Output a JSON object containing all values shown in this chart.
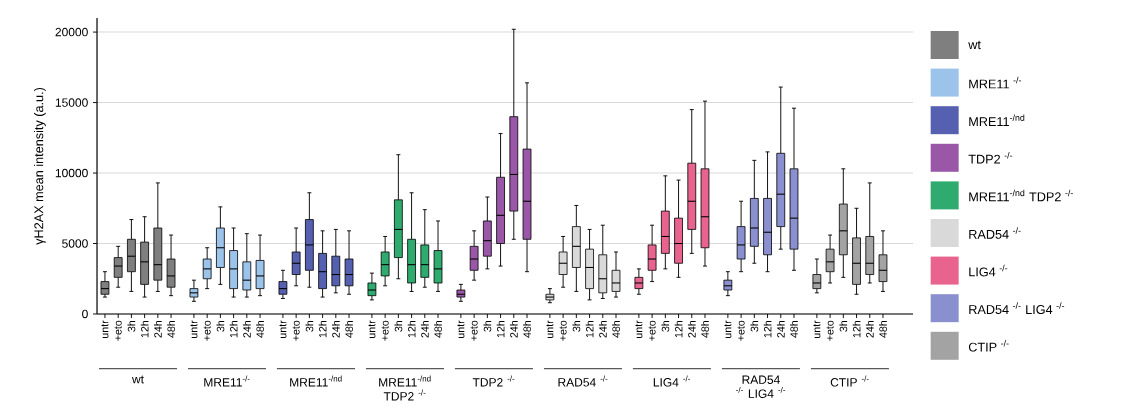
{
  "chart_data": {
    "type": "box",
    "ylabel": "γH2AX mean intensity (a.u.)",
    "ylim": [
      0,
      21000
    ],
    "yticks": [
      0,
      5000,
      10000,
      15000,
      20000
    ],
    "grid": "y",
    "legend": "right",
    "categories": [
      "untr",
      "+eto",
      "3h",
      "12h",
      "24h",
      "48h",
      "untr",
      "+eto",
      "3h",
      "12h",
      "24h",
      "48h",
      "untr",
      "+eto",
      "3h",
      "12h",
      "24h",
      "48h",
      "untr",
      "+eto",
      "3h",
      "12h",
      "24h",
      "48h",
      "untr",
      "+eto",
      "3h",
      "12h",
      "24h",
      "48h",
      "untr",
      "+eto",
      "3h",
      "12h",
      "24h",
      "48h",
      "untr",
      "+eto",
      "3h",
      "12h",
      "24h",
      "48h",
      "untr",
      "+eto",
      "3h",
      "12h",
      "24h",
      "48h",
      "untr",
      "+eto",
      "3h",
      "12h",
      "24h",
      "48h"
    ],
    "annotations": [
      "wt",
      "MRE11$^{-/-}$",
      "MRE11$^{-/nd}$",
      "MRE11$^{-/nd}$ TDP2 $^{-/-}$",
      "TDP2 $^{-/-}$",
      "RAD54 $^{-/-}$",
      "LIG4 $^{-/-}$",
      "RAD54 $^{-/-}$ LIG4 $^{-/-}$",
      "CTIP $^{-/-}$"
    ],
    "series": [
      {
        "name": "wt",
        "color": "#7f7f7f",
        "boxes": [
          {
            "low": 1200,
            "q1": 1400,
            "median": 1800,
            "q3": 2300,
            "high": 3000
          },
          {
            "low": 1900,
            "q1": 2600,
            "median": 3400,
            "q3": 4000,
            "high": 4800
          },
          {
            "low": 1600,
            "q1": 3000,
            "median": 4100,
            "q3": 5300,
            "high": 6700
          },
          {
            "low": 1200,
            "q1": 2100,
            "median": 3700,
            "q3": 5100,
            "high": 6900
          },
          {
            "low": 1600,
            "q1": 2400,
            "median": 3500,
            "q3": 6100,
            "high": 9300
          },
          {
            "low": 1300,
            "q1": 1900,
            "median": 2700,
            "q3": 3900,
            "high": 5600
          },
          null,
          null,
          null,
          null,
          null,
          null,
          null,
          null,
          null,
          null,
          null,
          null,
          null,
          null,
          null,
          null,
          null,
          null,
          null,
          null,
          null,
          null,
          null,
          null,
          null,
          null,
          null,
          null,
          null,
          null,
          null,
          null,
          null,
          null,
          null,
          null,
          null,
          null,
          null,
          null,
          null,
          null,
          null,
          null,
          null,
          null,
          null,
          null
        ]
      },
      {
        "name": "MRE11 $^{-/-}$",
        "color": "#9cc3ea",
        "boxes": [
          null,
          null,
          null,
          null,
          null,
          null,
          {
            "low": 900,
            "q1": 1200,
            "median": 1500,
            "q3": 1800,
            "high": 2400
          },
          {
            "low": 1800,
            "q1": 2500,
            "median": 3200,
            "q3": 3900,
            "high": 4700
          },
          {
            "low": 2100,
            "q1": 3300,
            "median": 4700,
            "q3": 6100,
            "high": 7600
          },
          {
            "low": 1200,
            "q1": 1800,
            "median": 3200,
            "q3": 4500,
            "high": 6100
          },
          {
            "low": 1200,
            "q1": 1700,
            "median": 2400,
            "q3": 3700,
            "high": 5700
          },
          {
            "low": 1300,
            "q1": 1800,
            "median": 2700,
            "q3": 3800,
            "high": 5600
          },
          null,
          null,
          null,
          null,
          null,
          null,
          null,
          null,
          null,
          null,
          null,
          null,
          null,
          null,
          null,
          null,
          null,
          null,
          null,
          null,
          null,
          null,
          null,
          null,
          null,
          null,
          null,
          null,
          null,
          null,
          null,
          null,
          null,
          null,
          null,
          null,
          null,
          null,
          null,
          null,
          null,
          null
        ]
      },
      {
        "name": "MRE11$^{-/nd}$",
        "color": "#5660b0",
        "boxes": [
          null,
          null,
          null,
          null,
          null,
          null,
          null,
          null,
          null,
          null,
          null,
          null,
          {
            "low": 1100,
            "q1": 1400,
            "median": 1800,
            "q3": 2300,
            "high": 3100
          },
          {
            "low": 2000,
            "q1": 2800,
            "median": 3600,
            "q3": 4400,
            "high": 6100
          },
          {
            "low": 1900,
            "q1": 3100,
            "median": 4900,
            "q3": 6700,
            "high": 8600
          },
          {
            "low": 1200,
            "q1": 1800,
            "median": 3000,
            "q3": 4300,
            "high": 5900
          },
          {
            "low": 1500,
            "q1": 2000,
            "median": 2800,
            "q3": 4100,
            "high": 6000
          },
          {
            "low": 1400,
            "q1": 2000,
            "median": 2800,
            "q3": 3900,
            "high": 5900
          },
          null,
          null,
          null,
          null,
          null,
          null,
          null,
          null,
          null,
          null,
          null,
          null,
          null,
          null,
          null,
          null,
          null,
          null,
          null,
          null,
          null,
          null,
          null,
          null,
          null,
          null,
          null,
          null,
          null,
          null,
          null,
          null,
          null,
          null,
          null,
          null
        ]
      },
      {
        "name": "TDP2 $^{-/-}$",
        "color": "#9a57a8",
        "boxes": [
          null,
          null,
          null,
          null,
          null,
          null,
          null,
          null,
          null,
          null,
          null,
          null,
          null,
          null,
          null,
          null,
          null,
          null,
          null,
          null,
          null,
          null,
          null,
          null,
          {
            "low": 900,
            "q1": 1200,
            "median": 1400,
            "q3": 1700,
            "high": 2100
          },
          {
            "low": 2400,
            "q1": 3100,
            "median": 3900,
            "q3": 4800,
            "high": 5900
          },
          {
            "low": 3200,
            "q1": 4100,
            "median": 5200,
            "q3": 6600,
            "high": 8300
          },
          {
            "low": 3400,
            "q1": 5000,
            "median": 7000,
            "q3": 9700,
            "high": 12800
          },
          {
            "low": 5300,
            "q1": 7300,
            "median": 9900,
            "q3": 14000,
            "high": 20200
          },
          {
            "low": 3000,
            "q1": 5300,
            "median": 8000,
            "q3": 11700,
            "high": 16400
          },
          null,
          null,
          null,
          null,
          null,
          null,
          null,
          null,
          null,
          null,
          null,
          null,
          null,
          null,
          null,
          null,
          null,
          null,
          null,
          null,
          null,
          null,
          null,
          null
        ]
      },
      {
        "name": "MRE11$^{-/nd}$ TDP2 $^{-/-}$",
        "color": "#2fab6f",
        "boxes": [
          null,
          null,
          null,
          null,
          null,
          null,
          null,
          null,
          null,
          null,
          null,
          null,
          null,
          null,
          null,
          null,
          null,
          null,
          {
            "low": 1000,
            "q1": 1300,
            "median": 1700,
            "q3": 2200,
            "high": 2900
          },
          {
            "low": 2000,
            "q1": 2700,
            "median": 3500,
            "q3": 4400,
            "high": 5500
          },
          {
            "low": 2500,
            "q1": 4000,
            "median": 6000,
            "q3": 8100,
            "high": 11300
          },
          {
            "low": 1600,
            "q1": 2200,
            "median": 3500,
            "q3": 5300,
            "high": 8600
          },
          {
            "low": 1900,
            "q1": 2600,
            "median": 3500,
            "q3": 4900,
            "high": 7400
          },
          {
            "low": 1600,
            "q1": 2200,
            "median": 3200,
            "q3": 4500,
            "high": 6600
          },
          null,
          null,
          null,
          null,
          null,
          null,
          null,
          null,
          null,
          null,
          null,
          null,
          null,
          null,
          null,
          null,
          null,
          null,
          null,
          null,
          null,
          null,
          null,
          null,
          null,
          null,
          null,
          null,
          null,
          null
        ]
      },
      {
        "name": "RAD54 $^{-/-}$",
        "color": "#d9d9d9",
        "boxes": [
          null,
          null,
          null,
          null,
          null,
          null,
          null,
          null,
          null,
          null,
          null,
          null,
          null,
          null,
          null,
          null,
          null,
          null,
          null,
          null,
          null,
          null,
          null,
          null,
          null,
          null,
          null,
          null,
          null,
          null,
          {
            "low": 800,
            "q1": 1000,
            "median": 1200,
            "q3": 1400,
            "high": 1800
          },
          {
            "low": 1900,
            "q1": 2800,
            "median": 3600,
            "q3": 4400,
            "high": 5500
          },
          {
            "low": 1600,
            "q1": 3300,
            "median": 4800,
            "q3": 6200,
            "high": 7700
          },
          {
            "low": 1000,
            "q1": 1800,
            "median": 3300,
            "q3": 4600,
            "high": 6000
          },
          {
            "low": 1100,
            "q1": 1500,
            "median": 2500,
            "q3": 4200,
            "high": 6300
          },
          {
            "low": 1200,
            "q1": 1600,
            "median": 2200,
            "q3": 3100,
            "high": 4400
          },
          null,
          null,
          null,
          null,
          null,
          null,
          null,
          null,
          null,
          null,
          null,
          null,
          null,
          null,
          null,
          null,
          null,
          null
        ]
      },
      {
        "name": "LIG4 $^{-/-}$",
        "color": "#e9638f",
        "boxes": [
          null,
          null,
          null,
          null,
          null,
          null,
          null,
          null,
          null,
          null,
          null,
          null,
          null,
          null,
          null,
          null,
          null,
          null,
          null,
          null,
          null,
          null,
          null,
          null,
          null,
          null,
          null,
          null,
          null,
          null,
          null,
          null,
          null,
          null,
          null,
          null,
          {
            "low": 1400,
            "q1": 1800,
            "median": 2200,
            "q3": 2600,
            "high": 3200
          },
          {
            "low": 2300,
            "q1": 3100,
            "median": 3900,
            "q3": 4900,
            "high": 6300
          },
          {
            "low": 3200,
            "q1": 4300,
            "median": 5500,
            "q3": 7300,
            "high": 9800
          },
          {
            "low": 2600,
            "q1": 3600,
            "median": 5000,
            "q3": 6800,
            "high": 9500
          },
          {
            "low": 4300,
            "q1": 6000,
            "median": 8000,
            "q3": 10700,
            "high": 14500
          },
          {
            "low": 3400,
            "q1": 4700,
            "median": 6900,
            "q3": 10300,
            "high": 15100
          },
          null,
          null,
          null,
          null,
          null,
          null,
          null,
          null,
          null,
          null,
          null,
          null
        ]
      },
      {
        "name": "RAD54 $^{-/-}$ LIG4 $^{-/-}$",
        "color": "#8a90cf",
        "boxes": [
          null,
          null,
          null,
          null,
          null,
          null,
          null,
          null,
          null,
          null,
          null,
          null,
          null,
          null,
          null,
          null,
          null,
          null,
          null,
          null,
          null,
          null,
          null,
          null,
          null,
          null,
          null,
          null,
          null,
          null,
          null,
          null,
          null,
          null,
          null,
          null,
          null,
          null,
          null,
          null,
          null,
          null,
          {
            "low": 1300,
            "q1": 1700,
            "median": 2000,
            "q3": 2400,
            "high": 3000
          },
          {
            "low": 3000,
            "q1": 3900,
            "median": 4900,
            "q3": 6200,
            "high": 8000
          },
          {
            "low": 3600,
            "q1": 4800,
            "median": 6100,
            "q3": 8200,
            "high": 10900
          },
          {
            "low": 3000,
            "q1": 4200,
            "median": 5800,
            "q3": 8200,
            "high": 11500
          },
          {
            "low": 4600,
            "q1": 6200,
            "median": 8500,
            "q3": 11400,
            "high": 16100
          },
          {
            "low": 3100,
            "q1": 4600,
            "median": 6800,
            "q3": 10300,
            "high": 14600
          },
          null,
          null,
          null,
          null,
          null,
          null
        ]
      },
      {
        "name": "CTIP $^{-/-}$",
        "color": "#a3a3a3",
        "boxes": [
          null,
          null,
          null,
          null,
          null,
          null,
          null,
          null,
          null,
          null,
          null,
          null,
          null,
          null,
          null,
          null,
          null,
          null,
          null,
          null,
          null,
          null,
          null,
          null,
          null,
          null,
          null,
          null,
          null,
          null,
          null,
          null,
          null,
          null,
          null,
          null,
          null,
          null,
          null,
          null,
          null,
          null,
          null,
          null,
          null,
          null,
          null,
          null,
          {
            "low": 1500,
            "q1": 1800,
            "median": 2200,
            "q3": 2800,
            "high": 3900
          },
          {
            "low": 2200,
            "q1": 3000,
            "median": 3700,
            "q3": 4600,
            "high": 5600
          },
          {
            "low": 2600,
            "q1": 4200,
            "median": 5900,
            "q3": 7800,
            "high": 10300
          },
          {
            "low": 1400,
            "q1": 2100,
            "median": 3600,
            "q3": 5400,
            "high": 7500
          },
          {
            "low": 2200,
            "q1": 2800,
            "median": 3600,
            "q3": 5500,
            "high": 9300
          },
          {
            "low": 1600,
            "q1": 2300,
            "median": 3100,
            "q3": 4200,
            "high": 5900
          }
        ]
      }
    ]
  }
}
